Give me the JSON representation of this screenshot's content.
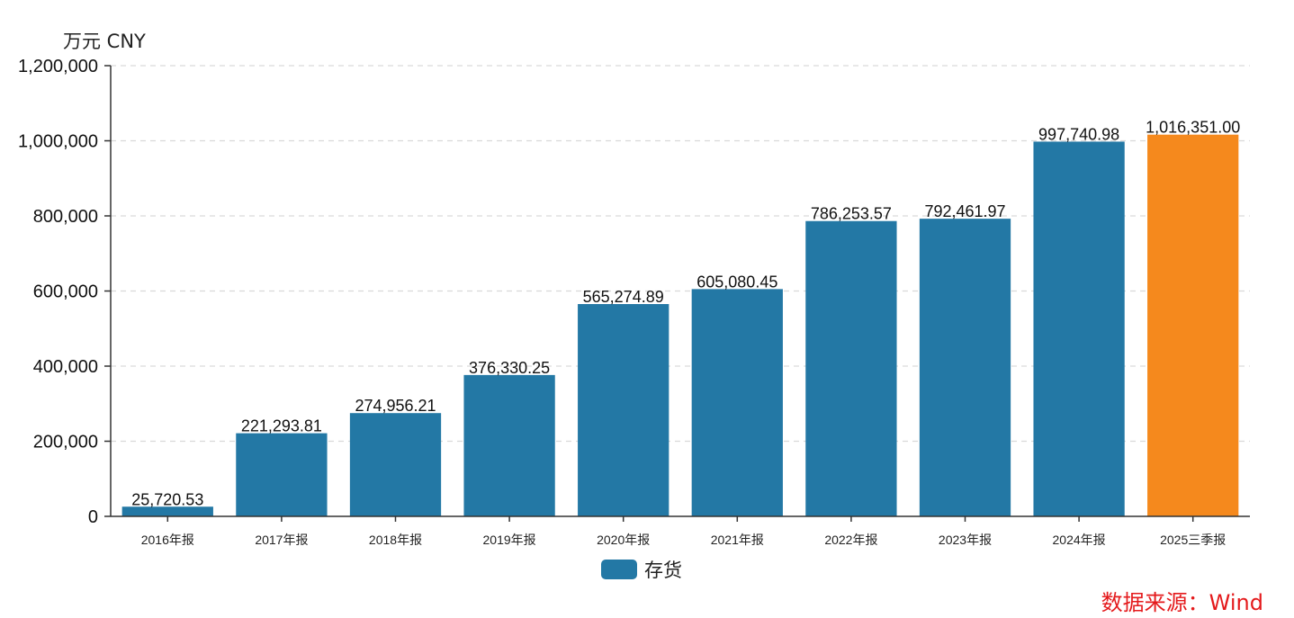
{
  "chart_data": {
    "type": "bar",
    "unit_label": "万元  CNY",
    "categories": [
      "2016年报",
      "2017年报",
      "2018年报",
      "2019年报",
      "2020年报",
      "2021年报",
      "2022年报",
      "2023年报",
      "2024年报",
      "2025三季报"
    ],
    "series": [
      {
        "name": "存货",
        "values": [
          25720.53,
          221293.81,
          274956.21,
          376330.25,
          565274.89,
          605080.45,
          786253.57,
          792461.97,
          997740.98,
          1016351.0
        ],
        "value_labels": [
          "25,720.53",
          "221,293.81",
          "274,956.21",
          "376,330.25",
          "565,274.89",
          "605,080.45",
          "786,253.57",
          "792,461.97",
          "997,740.98",
          "1,016,351.00"
        ],
        "color": "#2378a5",
        "highlight_color": "#f5891d",
        "highlight_index": 9
      }
    ],
    "ylim": [
      0,
      1200000
    ],
    "yticks": [
      0,
      200000,
      400000,
      600000,
      800000,
      1000000,
      1200000
    ],
    "ytick_labels": [
      "0",
      "200,000",
      "400,000",
      "600,000",
      "800,000",
      "1,000,000",
      "1,200,000"
    ],
    "grid": true,
    "legend_position": "bottom-center",
    "source": "数据来源：Wind"
  }
}
